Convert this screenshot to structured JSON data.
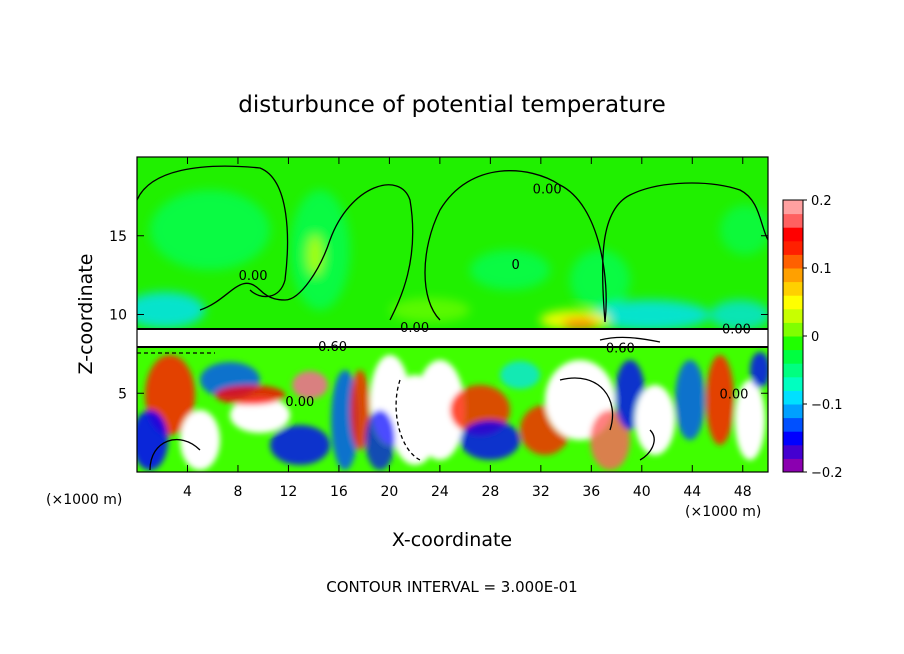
{
  "chart_data": {
    "type": "heatmap",
    "title": "disturbunce of potential temperature",
    "xlabel": "X-coordinate",
    "ylabel": "Z-coordinate",
    "x_unit": "(×1000 m)",
    "y_unit": "(×1000 m)",
    "xlim": [
      0,
      50
    ],
    "ylim": [
      0,
      20
    ],
    "xticks": [
      4,
      8,
      12,
      16,
      20,
      24,
      28,
      32,
      36,
      40,
      44,
      48
    ],
    "yticks": [
      5,
      10,
      15
    ],
    "colorbar": {
      "min": -0.2,
      "max": 0.2,
      "tick_values": [
        0.2,
        0.1,
        0,
        -0.1,
        -0.2
      ],
      "tick_labels": [
        "0.2",
        "0.1",
        "0",
        "−0.1",
        "−0.2"
      ],
      "colors": [
        "#8b00b0",
        "#4400d0",
        "#0000ff",
        "#0050ff",
        "#00a0ff",
        "#00e0ff",
        "#00ffc0",
        "#00ff80",
        "#00ff40",
        "#20ff00",
        "#80ff00",
        "#c8ff00",
        "#ffff00",
        "#ffd000",
        "#ffa000",
        "#ff6000",
        "#ff2000",
        "#ff0000",
        "#ff6060",
        "#ffa0a0"
      ]
    },
    "contour_labels": [
      {
        "text": "0.00",
        "x": 32.5,
        "y": 18.0
      },
      {
        "text": "0",
        "x": 30.0,
        "y": 13.2
      },
      {
        "text": "0.00",
        "x": 9.2,
        "y": 12.5
      },
      {
        "text": "0.00",
        "x": 22.0,
        "y": 9.2
      },
      {
        "text": "0.00",
        "x": 47.5,
        "y": 9.1
      },
      {
        "text": "0.60",
        "x": 15.5,
        "y": 8.0
      },
      {
        "text": "0.60",
        "x": 38.3,
        "y": 7.9
      },
      {
        "text": "0.00",
        "x": 12.9,
        "y": 4.5
      },
      {
        "text": "0.00",
        "x": 47.3,
        "y": 5.0
      }
    ],
    "footer": "CONTOUR INTERVAL = 3.000E-01",
    "colors": {
      "background_field": "#20f000"
    }
  }
}
